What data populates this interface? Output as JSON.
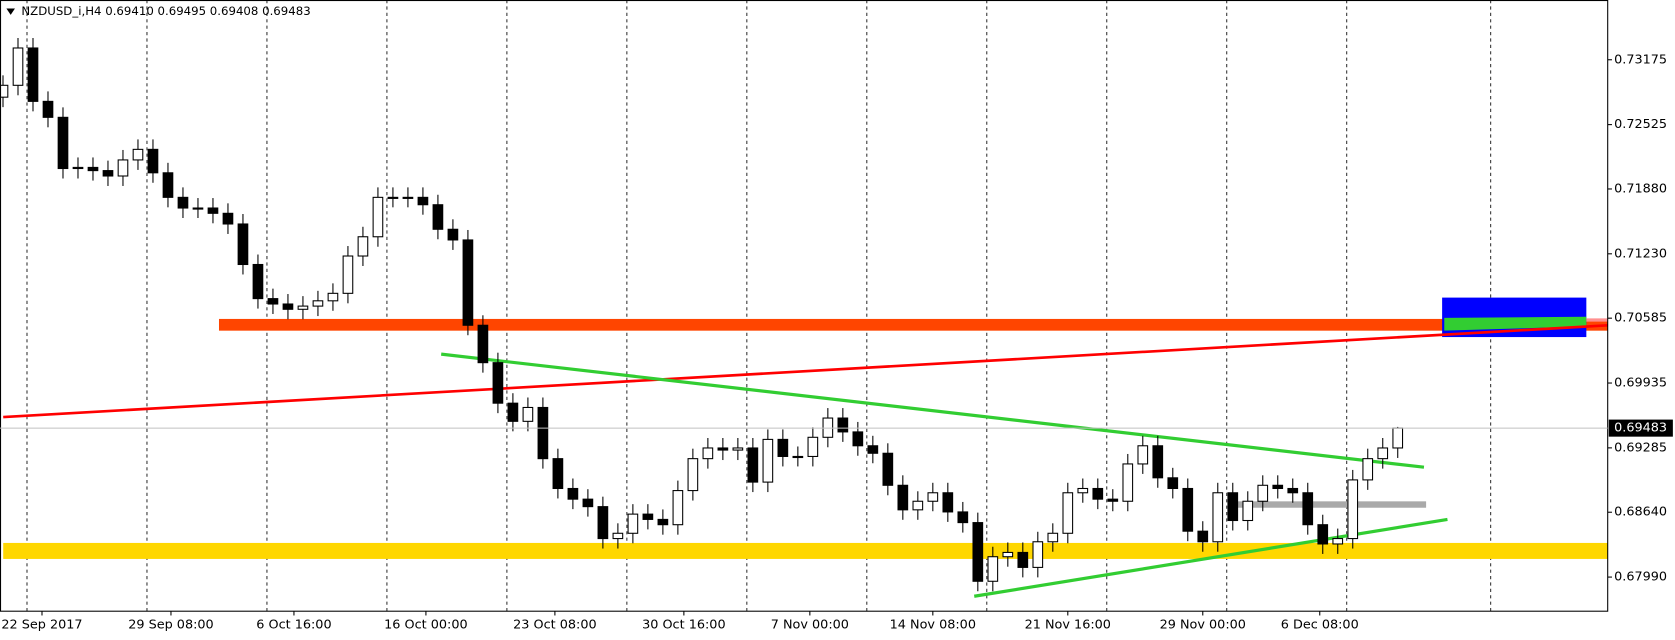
{
  "chart_data": {
    "type": "candlestick",
    "title": "NZDUSD_i,H4  0.69410 0.69495 0.69408 0.69483",
    "x": [
      0,
      5,
      10,
      15,
      20,
      25,
      30,
      35,
      40,
      45,
      50,
      55,
      60,
      65,
      70,
      75,
      80,
      85,
      90,
      95,
      100,
      105,
      110,
      115,
      120,
      125,
      130,
      135,
      140,
      145,
      150,
      155,
      160,
      165,
      170,
      175,
      180,
      185,
      190,
      195,
      200,
      205,
      210,
      215,
      220,
      225,
      230,
      235,
      240,
      245,
      250,
      255,
      260,
      265,
      270,
      275,
      280,
      285,
      290,
      295,
      300,
      305,
      310,
      315,
      320,
      325,
      330,
      335,
      340,
      345,
      350,
      355,
      360,
      365,
      370,
      375,
      380,
      385,
      390,
      395,
      400,
      405,
      410,
      415,
      420,
      425,
      430,
      435,
      440,
      445,
      450,
      455,
      460,
      465
    ],
    "open": [
      0.728,
      0.72919,
      0.73293,
      0.72758,
      0.72598,
      0.72085,
      0.72096,
      0.72064,
      0.7201,
      0.72171,
      0.72277,
      0.72042,
      0.71796,
      0.71689,
      0.71689,
      0.71636,
      0.71529,
      0.71123,
      0.70781,
      0.70727,
      0.70674,
      0.70706,
      0.70759,
      0.70834,
      0.71208,
      0.71401,
      0.71796,
      0.71796,
      0.71796,
      0.71722,
      0.71476,
      0.71369,
      0.70514,
      0.70139,
      0.69733,
      0.69551,
      0.6969,
      0.69177,
      0.68878,
      0.68771,
      0.68696,
      0.68376,
      0.68429,
      0.68621,
      0.68568,
      0.68515,
      0.68857,
      0.69177,
      0.69284,
      0.69263,
      0.69284,
      0.68942,
      0.6937,
      0.69199,
      0.69199,
      0.69391,
      0.69584,
      0.69445,
      0.69306,
      0.69231,
      0.6891,
      0.68664,
      0.6875,
      0.68835,
      0.68643,
      0.68536,
      0.67948,
      0.68194,
      0.68237,
      0.68087,
      0.68344,
      0.68429,
      0.68835,
      0.68878,
      0.68771,
      0.6875,
      0.69124,
      0.69306,
      0.68985,
      0.68878,
      0.6845,
      0.68344,
      0.68835,
      0.68557,
      0.6875,
      0.6891,
      0.68878,
      0.68835,
      0.68515,
      0.68322,
      0.68376,
      0.68964,
      0.69177,
      0.69284
    ],
    "high": [
      0.73019,
      0.73393,
      0.73393,
      0.72858,
      0.72698,
      0.72196,
      0.72196,
      0.72164,
      0.72271,
      0.72377,
      0.72377,
      0.72142,
      0.71896,
      0.71789,
      0.71789,
      0.71736,
      0.71629,
      0.71223,
      0.70881,
      0.70827,
      0.70806,
      0.70859,
      0.70934,
      0.71308,
      0.71501,
      0.71896,
      0.71896,
      0.71896,
      0.71896,
      0.71822,
      0.71576,
      0.71469,
      0.70614,
      0.70239,
      0.69833,
      0.6979,
      0.6979,
      0.69277,
      0.68978,
      0.68871,
      0.68796,
      0.68529,
      0.68721,
      0.68721,
      0.68668,
      0.68957,
      0.69277,
      0.69384,
      0.69384,
      0.69384,
      0.69384,
      0.6947,
      0.6947,
      0.69299,
      0.69491,
      0.69684,
      0.69684,
      0.69545,
      0.69406,
      0.69331,
      0.6901,
      0.6885,
      0.68935,
      0.68935,
      0.68743,
      0.68636,
      0.68294,
      0.68337,
      0.68337,
      0.68444,
      0.68529,
      0.68935,
      0.68978,
      0.68978,
      0.68871,
      0.69224,
      0.69406,
      0.69406,
      0.69085,
      0.68978,
      0.6855,
      0.68935,
      0.68935,
      0.6885,
      0.6901,
      0.6901,
      0.68978,
      0.68935,
      0.68615,
      0.68476,
      0.69064,
      0.69277,
      0.69384,
      0.69495
    ],
    "low": [
      0.727,
      0.72819,
      0.72658,
      0.72498,
      0.71985,
      0.71985,
      0.71964,
      0.7191,
      0.7191,
      0.72071,
      0.71942,
      0.71696,
      0.71589,
      0.71589,
      0.71536,
      0.71429,
      0.71023,
      0.70681,
      0.70627,
      0.70574,
      0.70574,
      0.70606,
      0.70659,
      0.70734,
      0.71108,
      0.71301,
      0.71696,
      0.71696,
      0.71622,
      0.71376,
      0.71269,
      0.70414,
      0.70039,
      0.69633,
      0.69451,
      0.69451,
      0.69077,
      0.68778,
      0.68671,
      0.68596,
      0.68276,
      0.68276,
      0.68329,
      0.68468,
      0.68415,
      0.68415,
      0.68757,
      0.69077,
      0.69163,
      0.69163,
      0.68842,
      0.68842,
      0.69099,
      0.69099,
      0.69099,
      0.69291,
      0.69345,
      0.69206,
      0.69131,
      0.6881,
      0.68564,
      0.68564,
      0.6865,
      0.68543,
      0.68436,
      0.67848,
      0.67848,
      0.68094,
      0.67987,
      0.67987,
      0.68244,
      0.68329,
      0.68735,
      0.68671,
      0.6865,
      0.6865,
      0.69024,
      0.68885,
      0.68778,
      0.6835,
      0.68244,
      0.68244,
      0.68457,
      0.68457,
      0.6865,
      0.68778,
      0.68735,
      0.68415,
      0.68222,
      0.68222,
      0.68276,
      0.68864,
      0.69077,
      0.69184
    ],
    "close": [
      0.72919,
      0.73293,
      0.72758,
      0.72598,
      0.72085,
      0.72096,
      0.72064,
      0.7201,
      0.72171,
      0.72277,
      0.72042,
      0.71796,
      0.71689,
      0.71689,
      0.71636,
      0.71529,
      0.71123,
      0.70781,
      0.70727,
      0.70674,
      0.70706,
      0.70759,
      0.70834,
      0.71208,
      0.71401,
      0.71796,
      0.71796,
      0.71796,
      0.71722,
      0.71476,
      0.71369,
      0.70514,
      0.70139,
      0.69733,
      0.69551,
      0.6969,
      0.69177,
      0.68878,
      0.68771,
      0.68696,
      0.68376,
      0.68429,
      0.68621,
      0.68568,
      0.68515,
      0.68857,
      0.69177,
      0.69284,
      0.69263,
      0.69284,
      0.68942,
      0.6937,
      0.69199,
      0.69199,
      0.69391,
      0.69584,
      0.69445,
      0.69306,
      0.69231,
      0.6891,
      0.68664,
      0.6875,
      0.68835,
      0.68643,
      0.68536,
      0.67948,
      0.68194,
      0.68237,
      0.68087,
      0.68344,
      0.68429,
      0.68835,
      0.68878,
      0.68771,
      0.6875,
      0.69124,
      0.69306,
      0.68985,
      0.68878,
      0.6845,
      0.68344,
      0.68835,
      0.68557,
      0.6875,
      0.6891,
      0.68878,
      0.68835,
      0.68515,
      0.68322,
      0.68376,
      0.68964,
      0.69177,
      0.69284,
      0.69483
    ],
    "xlim": [
      -1,
      535
    ],
    "ylim": [
      0.67648,
      0.73774
    ],
    "yticks": [
      0.73175,
      0.72525,
      {
        "value": 0.7188,
        "label": "0.71880"
      },
      {
        "value": 0.7123,
        "label": "0.71230"
      },
      0.70585,
      0.69935,
      0.69285,
      {
        "value": 0.6864,
        "label": "0.68640"
      },
      {
        "value": 0.6799,
        "label": "0.67990"
      }
    ],
    "xticks": [
      {
        "value": 13,
        "label": "22 Sep 2017"
      },
      {
        "value": 56,
        "label": "29 Sep 08:00"
      },
      {
        "value": 97,
        "label": "6 Oct 16:00"
      },
      {
        "value": 141,
        "label": "16 Oct 00:00"
      },
      {
        "value": 184,
        "label": "23 Oct 08:00"
      },
      {
        "value": 227,
        "label": "30 Oct 16:00"
      },
      {
        "value": 269,
        "label": "7 Nov 00:00"
      },
      {
        "value": 310,
        "label": "14 Nov 08:00"
      },
      {
        "value": 355,
        "label": "21 Nov 16:00"
      },
      {
        "value": 400,
        "label": "29 Nov 00:00"
      },
      {
        "value": 439,
        "label": "6 Dec 08:00"
      }
    ],
    "xgrid": [
      8,
      48,
      88,
      128,
      168,
      208,
      248,
      288,
      328,
      368,
      408,
      448,
      496
    ],
    "last_price": 0.69483,
    "grid": true
  }
}
